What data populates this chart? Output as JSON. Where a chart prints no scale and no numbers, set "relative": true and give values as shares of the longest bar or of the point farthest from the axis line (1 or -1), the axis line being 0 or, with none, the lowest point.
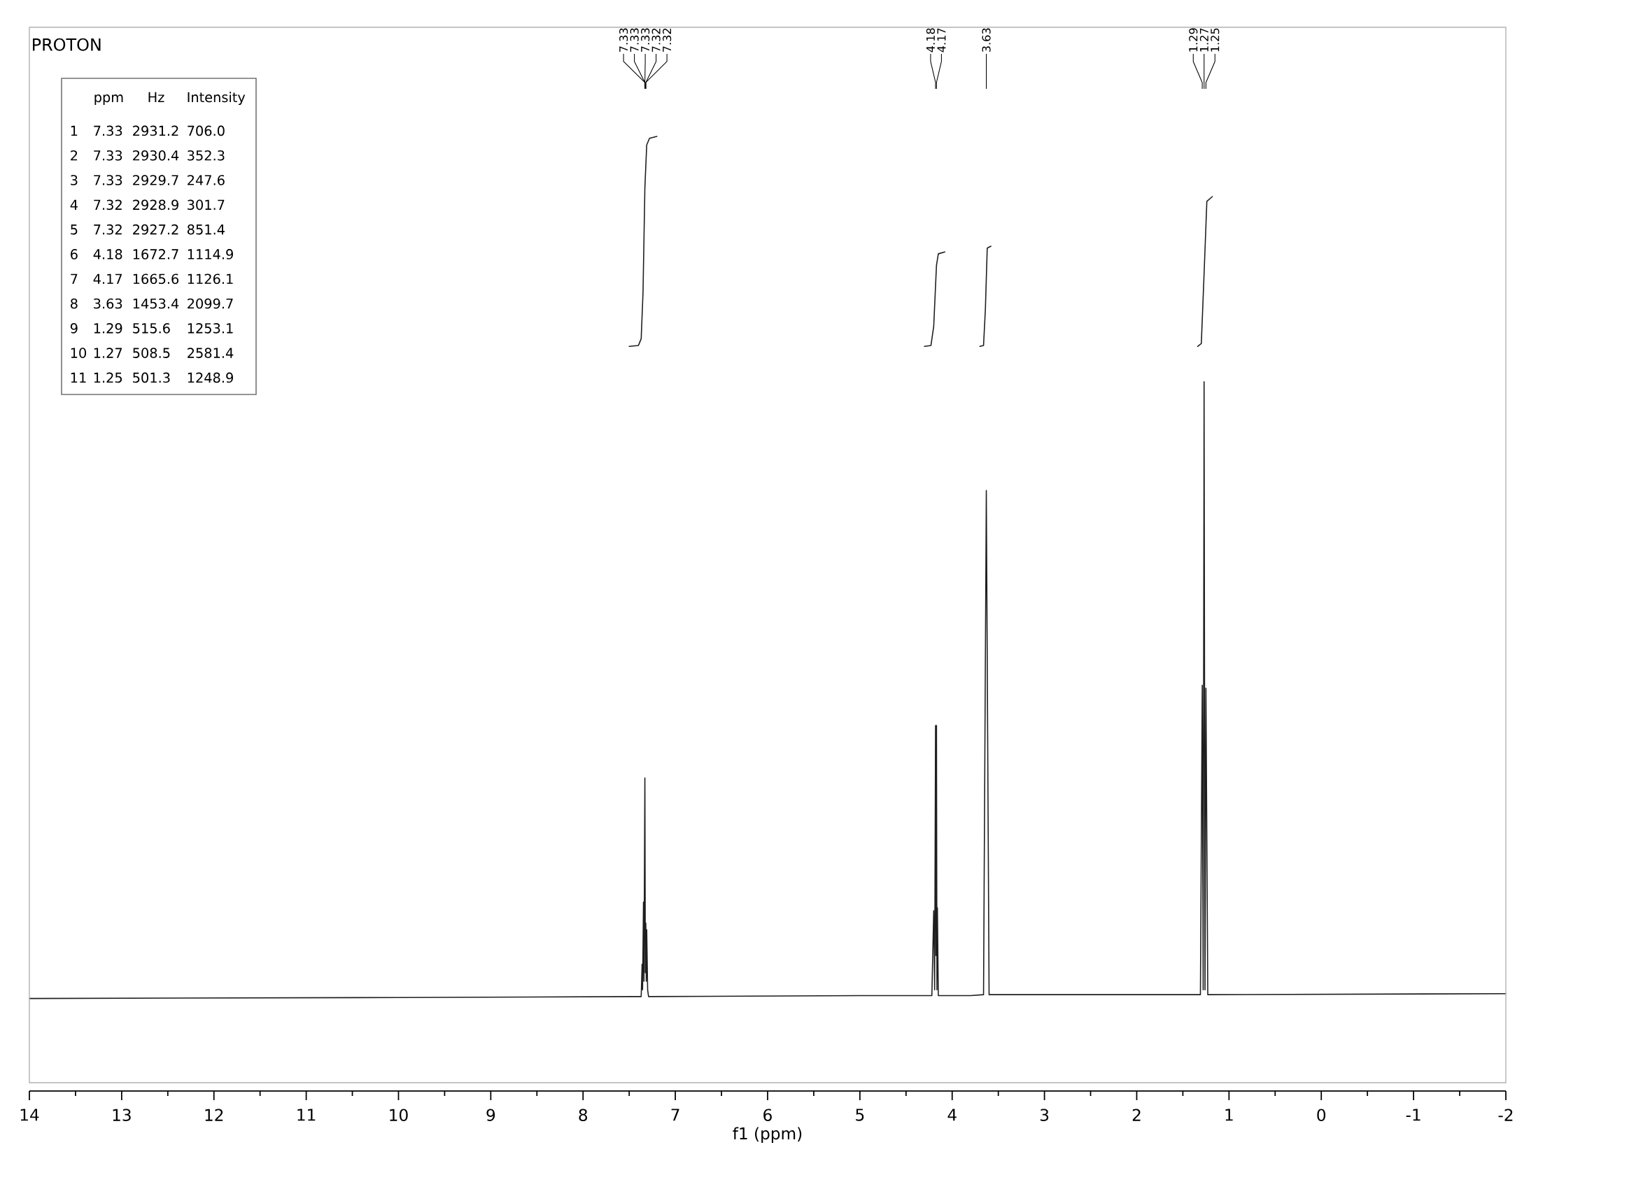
{
  "chart_data": {
    "type": "line",
    "title": "PROTON",
    "xlabel": "f1 (ppm)",
    "relative": true,
    "xlim": [
      14,
      -2
    ],
    "xticks": [
      14,
      13,
      12,
      11,
      10,
      9,
      8,
      7,
      6,
      5,
      4,
      3,
      2,
      1,
      0,
      -1,
      -2
    ],
    "series": [
      {
        "color": "#1e1e1e",
        "x": [
          14,
          10,
          7.45,
          7.37,
          7.36,
          7.355,
          7.345,
          7.34,
          7.33,
          7.325,
          7.32,
          7.315,
          7.31,
          7.3,
          7.29,
          5,
          4.22,
          4.2,
          4.19,
          4.18,
          4.175,
          4.17,
          4.165,
          4.16,
          4.15,
          3.8,
          3.66,
          3.63,
          3.6,
          1.4,
          1.31,
          1.29,
          1.28,
          1.27,
          1.26,
          1.25,
          1.23,
          -2
        ],
        "values": [
          0.097,
          0.098,
          0.099,
          0.099,
          0.133,
          0.106,
          0.198,
          0.115,
          0.328,
          0.124,
          0.176,
          0.115,
          0.169,
          0.106,
          0.099,
          0.1,
          0.1,
          0.189,
          0.106,
          0.383,
          0.142,
          0.383,
          0.106,
          0.192,
          0.1,
          0.1,
          0.101,
          0.629,
          0.101,
          0.101,
          0.101,
          0.425,
          0.106,
          0.743,
          0.106,
          0.422,
          0.101,
          0.102
        ]
      },
      {
        "color": "#1e1e1e",
        "x": [
          7.5,
          7.4,
          7.37,
          7.35,
          7.33,
          7.31,
          7.28,
          7.2
        ],
        "values": [
          0.78,
          0.781,
          0.788,
          0.837,
          0.946,
          0.991,
          0.998,
          1.0
        ]
      },
      {
        "color": "#1e1e1e",
        "x": [
          4.3,
          4.23,
          4.2,
          4.17,
          4.15,
          4.08
        ],
        "values": [
          0.78,
          0.781,
          0.801,
          0.865,
          0.877,
          0.879
        ]
      },
      {
        "color": "#1e1e1e",
        "x": [
          3.7,
          3.66,
          3.64,
          3.62,
          3.58
        ],
        "values": [
          0.78,
          0.781,
          0.819,
          0.883,
          0.885
        ]
      },
      {
        "color": "#1e1e1e",
        "x": [
          1.34,
          1.3,
          1.27,
          1.24,
          1.18
        ],
        "values": [
          0.78,
          0.783,
          0.856,
          0.932,
          0.937
        ]
      }
    ],
    "annotations": [
      {
        "text": "7.33",
        "x": 7.33
      },
      {
        "text": "7.33",
        "x": 7.33
      },
      {
        "text": "7.33",
        "x": 7.33
      },
      {
        "text": "7.32",
        "x": 7.32
      },
      {
        "text": "7.32",
        "x": 7.32
      },
      {
        "text": "4.18",
        "x": 4.18
      },
      {
        "text": "4.17",
        "x": 4.17
      },
      {
        "text": "3.63",
        "x": 3.63
      },
      {
        "text": "1.29",
        "x": 1.29
      },
      {
        "text": "1.27",
        "x": 1.27
      },
      {
        "text": "1.25",
        "x": 1.25
      },
      "ppm",
      "Hz",
      "Intensity",
      "1",
      "7.33",
      "2931.2",
      "706.0",
      "2",
      "7.33",
      "2930.4",
      "352.3",
      "3",
      "7.33",
      "2929.7",
      "247.6",
      "4",
      "7.32",
      "2928.9",
      "301.7",
      "5",
      "7.32",
      "2927.2",
      "851.4",
      "6",
      "4.18",
      "1672.7",
      "1114.9",
      "7",
      "4.17",
      "1665.6",
      "1126.1",
      "8",
      "3.63",
      "1453.4",
      "2099.7",
      "9",
      "1.29",
      "515.6",
      "1253.1",
      "10",
      "1.27",
      "508.5",
      "2581.4",
      "11",
      "1.25",
      "501.3",
      "1248.9"
    ]
  }
}
